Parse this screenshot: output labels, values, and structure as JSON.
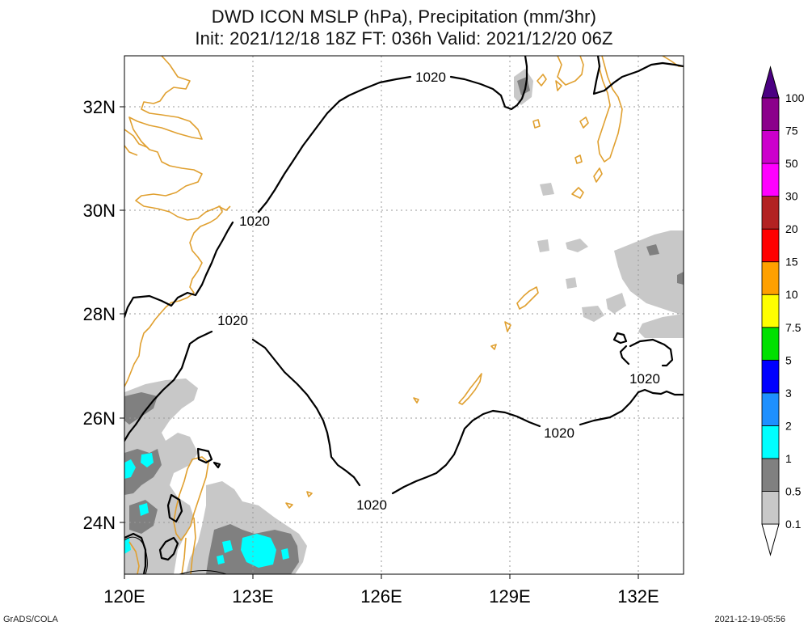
{
  "title_line1": "DWD ICON MSLP (hPa), Precipitation (mm/3hr)",
  "title_line2": "Init: 2021/12/18 18Z  FT: 036h  Valid: 2021/12/20 06Z",
  "footer_left": "GrADS/COLA",
  "footer_right": "2021-12-19-05:56",
  "map": {
    "lon_range": [
      120,
      133
    ],
    "lat_range": [
      23,
      33
    ],
    "lon_ticks": [
      {
        "value": 120,
        "label": "120E"
      },
      {
        "value": 123,
        "label": "123E"
      },
      {
        "value": 126,
        "label": "126E"
      },
      {
        "value": 129,
        "label": "129E"
      },
      {
        "value": 132,
        "label": "132E"
      }
    ],
    "lat_ticks": [
      {
        "value": 24,
        "label": "24N"
      },
      {
        "value": 26,
        "label": "26N"
      },
      {
        "value": 28,
        "label": "28N"
      },
      {
        "value": 30,
        "label": "30N"
      },
      {
        "value": 32,
        "label": "32N"
      }
    ],
    "isobar_label": "1020",
    "colors": {
      "coastline": "#e0a030",
      "isobar": "#000000",
      "grid": "#999999"
    }
  },
  "colorbar": {
    "levels": [
      "0.1",
      "0.5",
      "1",
      "2",
      "3",
      "5",
      "7.5",
      "10",
      "15",
      "20",
      "30",
      "50",
      "75",
      "100"
    ],
    "colors": [
      "#c8c8c8",
      "#808080",
      "#00ffff",
      "#1e90ff",
      "#0000ff",
      "#00e000",
      "#ffff00",
      "#ffa000",
      "#ff0000",
      "#b22222",
      "#ff00ff",
      "#cc00cc",
      "#8b008b",
      "#4b0082"
    ]
  }
}
